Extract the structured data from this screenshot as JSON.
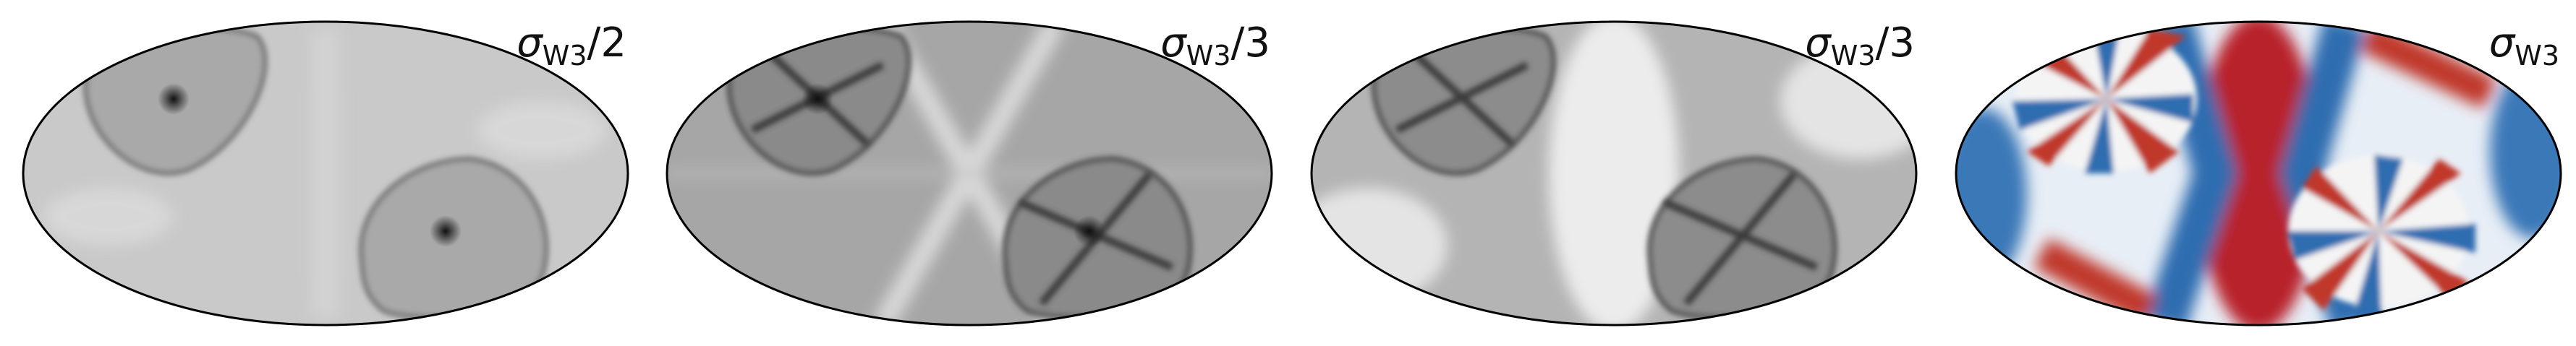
{
  "panels": [
    {
      "label": {
        "symbol": "σ",
        "subscript": "W3",
        "suffix": "/2"
      }
    },
    {
      "label": {
        "symbol": "σ",
        "subscript": "W3",
        "suffix": "/3"
      }
    },
    {
      "label": {
        "symbol": "σ",
        "subscript": "W3",
        "suffix": "/3"
      }
    },
    {
      "label": {
        "symbol": "σ",
        "subscript": "W3"
      }
    }
  ]
}
